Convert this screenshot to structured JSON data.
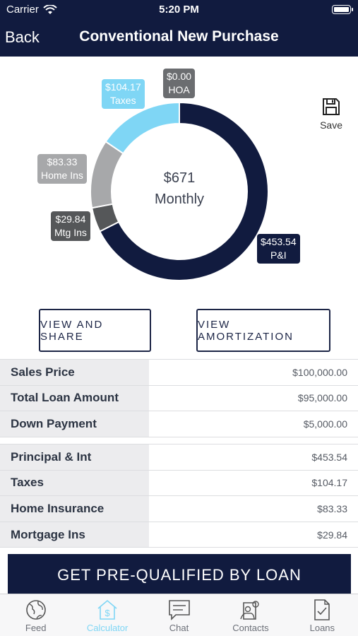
{
  "status": {
    "carrier": "Carrier",
    "time": "5:20 PM"
  },
  "nav": {
    "back": "Back",
    "title": "Conventional New Purchase"
  },
  "chart_data": {
    "type": "pie",
    "center_amount": "$671",
    "center_label": "Monthly",
    "slices": [
      {
        "name": "P&I",
        "label": "$453.54",
        "value": 453.54,
        "color": "#111b3f"
      },
      {
        "name": "Mtg Ins",
        "label": "$29.84",
        "value": 29.84,
        "color": "#555759"
      },
      {
        "name": "Home Ins",
        "label": "$83.33",
        "value": 83.33,
        "color": "#a7a8aa"
      },
      {
        "name": "Taxes",
        "label": "$104.17",
        "value": 104.17,
        "color": "#7fd6f5"
      },
      {
        "name": "HOA",
        "label": "$0.00",
        "value": 0,
        "color": "#6b6d70"
      }
    ]
  },
  "save_label": "Save",
  "buttons": {
    "view_share": "VIEW AND SHARE",
    "view_amortization": "VIEW AMORTIZATION"
  },
  "loan_table": [
    {
      "label": "Sales Price",
      "value": "$100,000.00"
    },
    {
      "label": "Total Loan Amount",
      "value": "$95,000.00"
    },
    {
      "label": "Down Payment",
      "value": "$5,000.00"
    }
  ],
  "payment_table": [
    {
      "label": "Principal & Int",
      "value": "$453.54"
    },
    {
      "label": "Taxes",
      "value": "$104.17"
    },
    {
      "label": "Home Insurance",
      "value": "$83.33"
    },
    {
      "label": "Mortgage Ins",
      "value": "$29.84"
    }
  ],
  "cta": "GET PRE-QUALIFIED BY LOAN",
  "tabs": [
    {
      "label": "Feed",
      "icon": "globe-icon",
      "active": false
    },
    {
      "label": "Calculator",
      "icon": "calculator-house-icon",
      "active": true
    },
    {
      "label": "Chat",
      "icon": "chat-icon",
      "active": false
    },
    {
      "label": "Contacts",
      "icon": "contacts-icon",
      "active": false
    },
    {
      "label": "Loans",
      "icon": "loans-icon",
      "active": false
    }
  ]
}
